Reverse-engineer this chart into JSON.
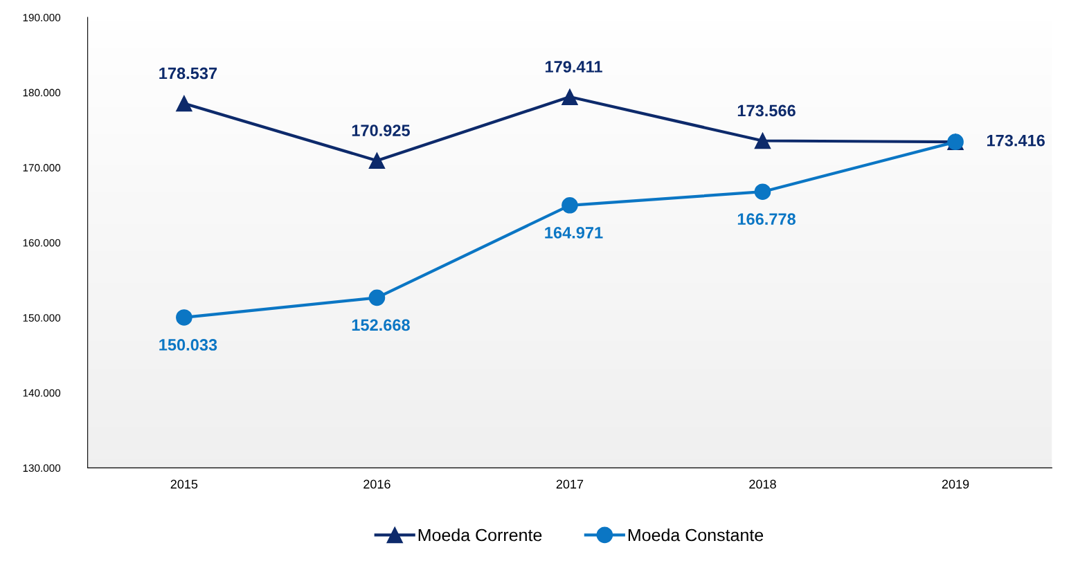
{
  "chart_data": {
    "type": "line",
    "categories": [
      "2015",
      "2016",
      "2017",
      "2018",
      "2019"
    ],
    "series": [
      {
        "name": "Moeda Corrente",
        "color": "#0d2a6b",
        "marker": "triangle",
        "values": [
          178537,
          170925,
          179411,
          173566,
          173416
        ],
        "value_labels": [
          "178.537",
          "170.925",
          "179.411",
          "173.566",
          "173.416"
        ]
      },
      {
        "name": "Moeda Constante",
        "color": "#0b76c4",
        "marker": "circle",
        "values": [
          150033,
          152668,
          164971,
          166778,
          173416
        ],
        "value_labels": [
          "150.033",
          "152.668",
          "164.971",
          "166.778",
          null
        ]
      }
    ],
    "ylim": [
      130000,
      190000
    ],
    "yticks": [
      {
        "value": 130000,
        "label": "130.000"
      },
      {
        "value": 140000,
        "label": "140.000"
      },
      {
        "value": 150000,
        "label": "150.000"
      },
      {
        "value": 160000,
        "label": "160.000"
      },
      {
        "value": 170000,
        "label": "170.000"
      },
      {
        "value": 180000,
        "label": "180.000"
      },
      {
        "value": 190000,
        "label": "190.000"
      }
    ],
    "grid": false,
    "legend": "bottom",
    "line_style": "solid"
  }
}
